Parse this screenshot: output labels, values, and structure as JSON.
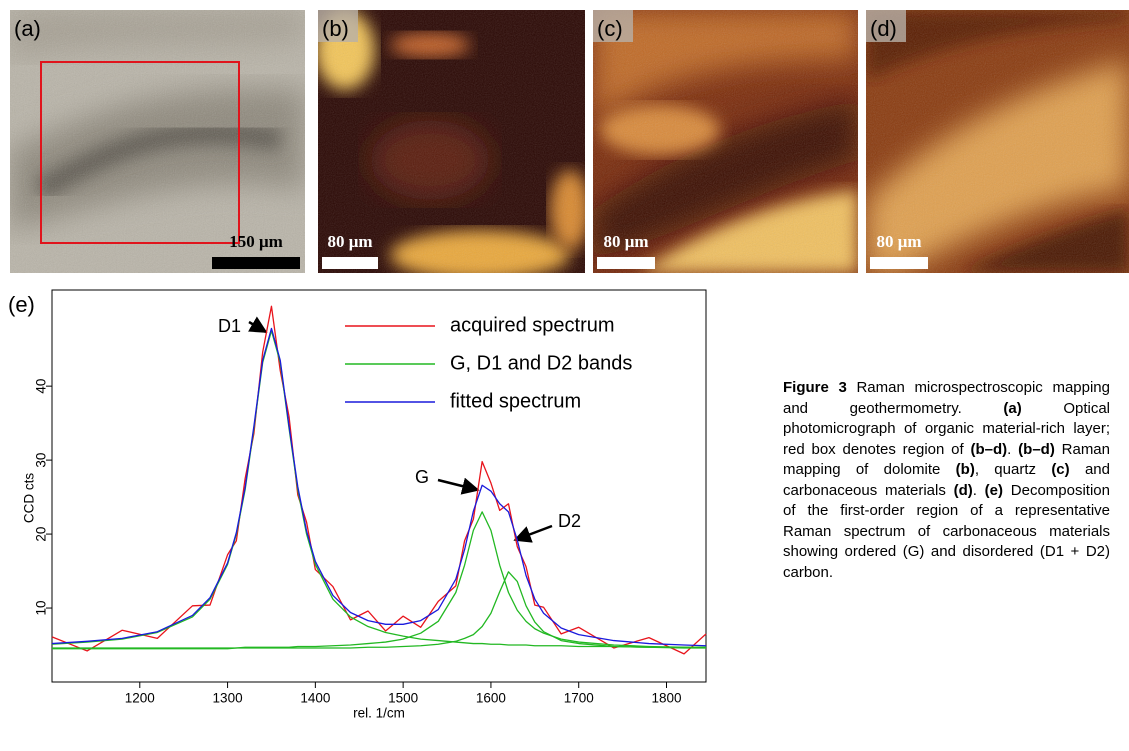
{
  "panels": [
    {
      "label": "(a)",
      "scale_bar": "150 μm"
    },
    {
      "label": "(b)",
      "scale_bar": "80 μm"
    },
    {
      "label": "(c)",
      "scale_bar": "80 μm"
    },
    {
      "label": "(d)",
      "scale_bar": "80 μm"
    }
  ],
  "chart_data": {
    "type": "line",
    "panel_label": "(e)",
    "x_label": "rel. 1/cm",
    "y_label": "CCD cts",
    "xlim": [
      1100,
      1845
    ],
    "ylim": [
      0,
      53
    ],
    "xticks": [
      1200,
      1300,
      1400,
      1500,
      1600,
      1700,
      1800
    ],
    "yticks": [
      10,
      20,
      30,
      40
    ],
    "annotations": [
      "D1",
      "G",
      "D2"
    ],
    "x": [
      1100,
      1140,
      1180,
      1220,
      1260,
      1280,
      1300,
      1310,
      1320,
      1330,
      1340,
      1350,
      1360,
      1370,
      1380,
      1390,
      1400,
      1420,
      1440,
      1460,
      1480,
      1500,
      1520,
      1540,
      1560,
      1570,
      1580,
      1590,
      1600,
      1610,
      1620,
      1630,
      1640,
      1650,
      1660,
      1680,
      1700,
      1740,
      1780,
      1820,
      1845
    ],
    "series": [
      {
        "name": "acquired spectrum",
        "color": "#e8141c",
        "values": [
          6.1,
          4.2,
          7.0,
          5.9,
          10.3,
          10.4,
          17.2,
          19.1,
          27.5,
          33.6,
          44.6,
          50.8,
          42.1,
          35.9,
          25.3,
          21.6,
          15.2,
          12.9,
          8.4,
          9.6,
          6.9,
          8.9,
          7.4,
          10.9,
          13.0,
          19.1,
          22.0,
          29.8,
          26.9,
          23.2,
          24.1,
          18.3,
          15.6,
          10.4,
          10.1,
          6.5,
          7.4,
          4.6,
          6.0,
          3.8,
          6.5
        ]
      },
      {
        "name": "G, D1 and D2 bands",
        "color": "#22b822",
        "values": [
          5.1,
          5.4,
          5.8,
          6.7,
          8.8,
          11.2,
          15.9,
          20.0,
          26.0,
          34.3,
          43.2,
          47.5,
          43.2,
          34.3,
          26.0,
          20.0,
          15.9,
          11.2,
          8.8,
          7.5,
          6.7,
          6.2,
          5.8,
          5.6,
          5.4,
          5.3,
          5.2,
          5.2,
          5.1,
          5.1,
          5.0,
          5.0,
          5.0,
          4.9,
          4.9,
          4.9,
          4.8,
          4.8,
          4.7,
          4.7,
          4.7
        ]
      },
      {
        "color": "#22b822",
        "values": [
          4.6,
          4.6,
          4.6,
          4.6,
          4.6,
          4.6,
          4.6,
          4.6,
          4.7,
          4.7,
          4.7,
          4.7,
          4.7,
          4.7,
          4.8,
          4.8,
          4.8,
          4.9,
          5.0,
          5.2,
          5.4,
          5.8,
          6.6,
          8.2,
          12.1,
          15.8,
          20.5,
          23.0,
          20.5,
          15.8,
          12.1,
          9.7,
          8.2,
          7.2,
          6.6,
          5.8,
          5.4,
          5.0,
          4.8,
          4.7,
          4.7
        ]
      },
      {
        "color": "#22b822",
        "values": [
          4.5,
          4.5,
          4.5,
          4.5,
          4.5,
          4.5,
          4.5,
          4.6,
          4.6,
          4.6,
          4.6,
          4.6,
          4.6,
          4.6,
          4.6,
          4.6,
          4.6,
          4.6,
          4.6,
          4.7,
          4.7,
          4.8,
          4.9,
          5.1,
          5.5,
          5.9,
          6.4,
          7.5,
          9.3,
          12.2,
          14.9,
          13.6,
          10.3,
          8.1,
          6.8,
          5.6,
          5.2,
          4.8,
          4.7,
          4.6,
          4.6
        ]
      },
      {
        "name": "fitted spectrum",
        "color": "#1a1adc",
        "values": [
          5.2,
          5.5,
          5.9,
          6.8,
          9.0,
          11.4,
          16.1,
          20.2,
          26.3,
          34.6,
          43.5,
          47.8,
          43.5,
          34.6,
          26.4,
          20.4,
          16.3,
          11.7,
          9.4,
          8.3,
          7.8,
          7.8,
          8.3,
          9.8,
          13.9,
          17.9,
          23.1,
          26.6,
          25.8,
          24.1,
          23.0,
          19.2,
          14.4,
          11.2,
          9.3,
          7.3,
          6.4,
          5.6,
          5.2,
          5.0,
          4.9
        ]
      }
    ]
  },
  "caption": {
    "segments": [
      "Figure 3",
      "Raman microspectroscopic mapping and geothermometry.",
      "(a)",
      "Optical photomicrograph of organic material-rich layer; red box denotes region of",
      "(b–d)",
      ".",
      "(b–d)",
      "Raman mapping of dolomite",
      "(b)",
      ", quartz",
      "(c)",
      "and carbonaceous materials",
      "(d)",
      ".",
      "(e)",
      "Decomposition of the first-order region of a representative Raman spectrum of carbonaceous materials showing ordered (G) and disordered (D1 + D2) carbon."
    ]
  }
}
